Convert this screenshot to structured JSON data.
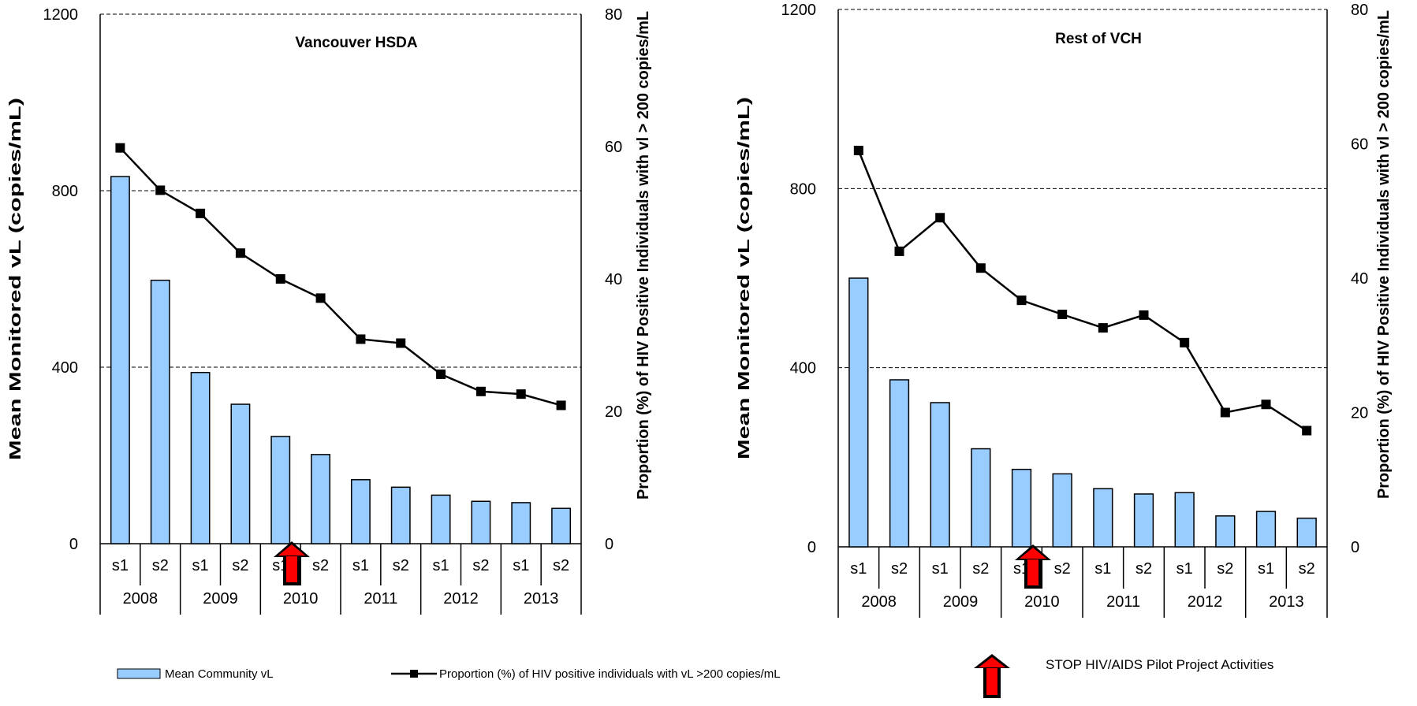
{
  "legend": {
    "bar_label": "Mean Community vL",
    "line_label": "Proportion (%) of HIV positive individuals with vL >200 copies/mL",
    "arrow_label": "STOP HIV/AIDS  Pilot  Project Activities"
  },
  "colors": {
    "bar_fill": "#99CCFF",
    "bar_stroke": "#000000",
    "line": "#000000",
    "arrow_fill": "#FF0000",
    "arrow_stroke": "#000000"
  },
  "chart_data": [
    {
      "type": "bar",
      "title": "Vancouver HSDA",
      "ylabel": "Mean Monitored vL (copies/mL)",
      "y2label": "Proportion (%) of HIV Positive Individuals with vl > 200 copies/mL",
      "ylim": [
        0,
        1200
      ],
      "y2lim": [
        0,
        80
      ],
      "yticks": [
        "0",
        "400",
        "800",
        "1200"
      ],
      "y2ticks": [
        "0",
        "20",
        "40",
        "60",
        "80"
      ],
      "gridlines": [
        400,
        800,
        1200
      ],
      "categories": [
        "s1",
        "s2",
        "s1",
        "s2",
        "s1",
        "s2",
        "s1",
        "s2",
        "s1",
        "s2",
        "s1",
        "s2"
      ],
      "years": [
        "2008",
        "2009",
        "2010",
        "2011",
        "2012",
        "2013"
      ],
      "series": [
        {
          "name": "Mean Community vL",
          "kind": "bar",
          "axis": "left",
          "values": [
            832,
            597,
            388,
            316,
            243,
            202,
            145,
            128,
            110,
            96,
            93,
            80
          ]
        },
        {
          "name": "Proportion (%) of HIV positive individuals with vL >200 copies/mL",
          "kind": "line",
          "axis": "right",
          "values": [
            59.8,
            53.4,
            49.9,
            43.9,
            40.0,
            37.1,
            30.9,
            30.3,
            25.6,
            23.0,
            22.6,
            20.9
          ]
        }
      ],
      "arrow_position": 4.5
    },
    {
      "type": "bar",
      "title": "Rest of VCH",
      "ylabel": "Mean Monitored vL (copies/mL)",
      "y2label": "Proportion (%) of HIV Positive Individuals with vl > 200 copies/mL",
      "ylim": [
        0,
        1200
      ],
      "y2lim": [
        0,
        80
      ],
      "yticks": [
        "0",
        "400",
        "800",
        "1200"
      ],
      "y2ticks": [
        "0",
        "20",
        "40",
        "60",
        "80"
      ],
      "gridlines": [
        400,
        800,
        1200
      ],
      "categories": [
        "s1",
        "s2",
        "s1",
        "s2",
        "s1",
        "s2",
        "s1",
        "s2",
        "s1",
        "s2",
        "s1",
        "s2"
      ],
      "years": [
        "2008",
        "2009",
        "2010",
        "2011",
        "2012",
        "2013"
      ],
      "series": [
        {
          "name": "Mean Community vL",
          "kind": "bar",
          "axis": "left",
          "values": [
            600,
            373,
            322,
            219,
            173,
            163,
            130,
            118,
            121,
            69,
            79,
            64
          ]
        },
        {
          "name": "Proportion (%) of HIV positive individuals with vL >200 copies/mL",
          "kind": "line",
          "axis": "right",
          "values": [
            59.0,
            44.0,
            49.0,
            41.5,
            36.7,
            34.6,
            32.6,
            34.5,
            30.4,
            20.0,
            21.2,
            17.3
          ]
        }
      ],
      "arrow_position": 4.5
    }
  ]
}
